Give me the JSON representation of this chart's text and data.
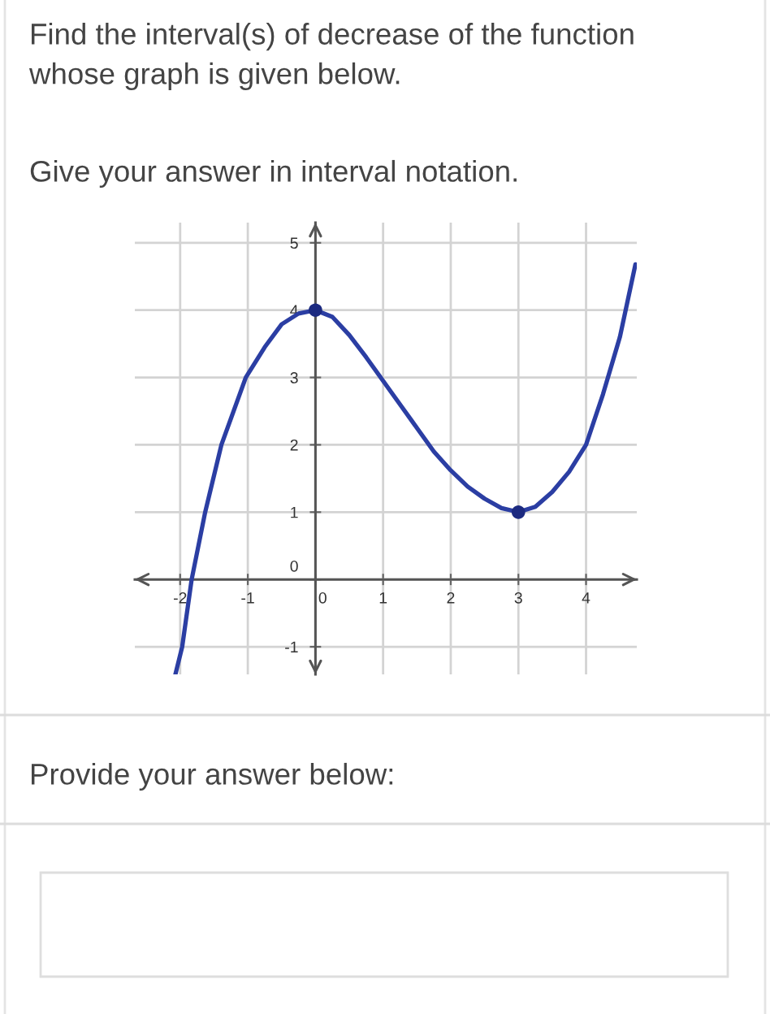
{
  "chart_data": {
    "type": "line",
    "title": "Find the interval(s) of decrease of the function whose graph is given below.",
    "annotations": [
      "Give your answer in interval notation.",
      "Provide your answer below:"
    ],
    "series": [
      {
        "color": "#2b3ea3",
        "marker": "none",
        "x": [
          -2.07,
          -1.97,
          -1.83,
          -1.63,
          -1.39,
          -1.03,
          -0.75,
          -0.5,
          -0.25,
          0,
          0.25,
          0.5,
          0.75,
          1.0,
          1.25,
          1.5,
          1.75,
          2.0,
          2.25,
          2.5,
          2.75,
          3.0,
          3.25,
          3.5,
          3.75,
          4.0,
          4.25,
          4.5,
          4.73
        ],
        "values": [
          -1.41,
          -1,
          0,
          1,
          2,
          3,
          3.45,
          3.79,
          3.95,
          4,
          3.9,
          3.63,
          3.3,
          2.95,
          2.6,
          2.25,
          1.9,
          1.62,
          1.38,
          1.2,
          1.06,
          1,
          1.08,
          1.3,
          1.6,
          2,
          2.75,
          3.6,
          4.68
        ]
      },
      {
        "type": "scatter",
        "color": "#1c2a80",
        "marker": "circle",
        "x": [
          0,
          3
        ],
        "values": [
          4,
          1
        ]
      }
    ],
    "xlim": [
      -2.67,
      4.75
    ],
    "ylim": [
      -1.41,
      5.3
    ],
    "xticks": [
      -2,
      -1,
      0,
      1,
      2,
      3,
      4
    ],
    "yticks": [
      -1,
      0,
      1,
      2,
      3,
      4,
      5
    ],
    "grid": true
  }
}
